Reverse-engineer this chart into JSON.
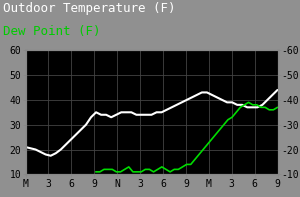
{
  "title1": "Outdoor Temperature (F)",
  "title2": "Dew Point (F)",
  "title1_color": "#ffffff",
  "title2_color": "#00cc00",
  "bg_color": "#000000",
  "outer_bg": "#909090",
  "grid_color": "#444444",
  "temp_color": "#ffffff",
  "dew_color": "#00dd00",
  "ylim": [
    10,
    60
  ],
  "yticks_left": [
    10,
    20,
    30,
    40,
    50,
    60
  ],
  "yticks_right": [
    "-10",
    "-20",
    "-30",
    "-40",
    "-50",
    "-60"
  ],
  "xlabel_ticks": [
    "M",
    "3",
    "6",
    "9",
    "N",
    "3",
    "6",
    "9",
    "M",
    "3",
    "6",
    "9"
  ],
  "temp_data": [
    21,
    20.5,
    20,
    19,
    18,
    17.5,
    18.5,
    20,
    22,
    24,
    26,
    28,
    30,
    33,
    35,
    34,
    34,
    33,
    34,
    35,
    35,
    35,
    34,
    34,
    34,
    34,
    35,
    35,
    36,
    37,
    38,
    39,
    40,
    41,
    42,
    43,
    43,
    42,
    41,
    40,
    39,
    39,
    38,
    38,
    37,
    37,
    37,
    38,
    40,
    42,
    44
  ],
  "dew_data": [
    null,
    null,
    null,
    null,
    null,
    null,
    null,
    null,
    null,
    null,
    null,
    null,
    null,
    null,
    null,
    null,
    null,
    11,
    11,
    12,
    12,
    12,
    11,
    11,
    12,
    13,
    11,
    11,
    11,
    12,
    12,
    11,
    12,
    13,
    12,
    11,
    12,
    12,
    13,
    14,
    14,
    16,
    18,
    20,
    22,
    24,
    26,
    28,
    30,
    32,
    33,
    35,
    37,
    38,
    39,
    38,
    38,
    37,
    37,
    36,
    36,
    37
  ],
  "title1_fontsize": 9,
  "title2_fontsize": 9,
  "tick_fontsize": 7
}
